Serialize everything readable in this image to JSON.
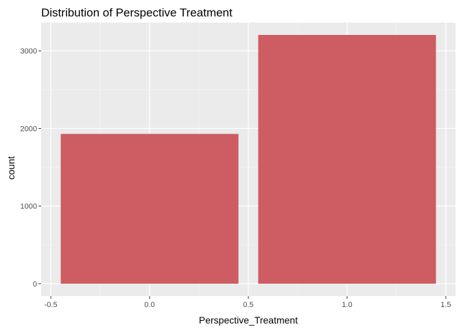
{
  "chart_data": {
    "type": "bar",
    "title": "Distribution of Perspective Treatment",
    "xlabel": "Perspective_Treatment",
    "ylabel": "count",
    "x": [
      0,
      1
    ],
    "values": [
      1930,
      3205
    ],
    "bar_width": 0.9,
    "xlim": [
      -0.5,
      1.5
    ],
    "ylim": [
      0,
      3200
    ],
    "x_ticks": [
      -0.5,
      0.0,
      0.5,
      1.0,
      1.5
    ],
    "x_tick_labels": [
      "-0.5",
      "0.0",
      "0.5",
      "1.0",
      "1.5"
    ],
    "y_ticks": [
      0,
      1000,
      2000,
      3000
    ],
    "y_tick_labels": [
      "0",
      "1000",
      "2000",
      "3000"
    ],
    "grid": true,
    "legend": "none",
    "colors": {
      "bar": "#cd5c63",
      "panel_background": "#ebebeb",
      "grid_major": "#ffffff",
      "grid_minor": "#f4f4f4"
    }
  }
}
